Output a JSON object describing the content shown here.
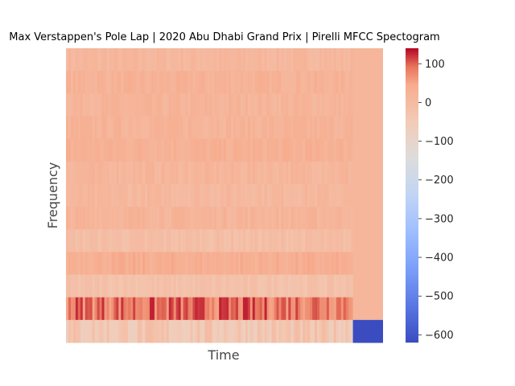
{
  "chart_data": {
    "type": "heatmap",
    "title": "Max Verstappen's Pole Lap | 2020 Abu Dhabi Grand Prix | Pirelli MFCC Spectogram",
    "xlabel": "Time",
    "ylabel": "Frequency",
    "x_ticks_shown": false,
    "y_ticks_shown": false,
    "grid": false,
    "colormap": "coolwarm",
    "colorbar": {
      "vmin": -620,
      "vmax": 140,
      "ticks": [
        100,
        0,
        -100,
        -200,
        -300,
        -400,
        -500,
        -600
      ],
      "tick_labels": [
        "100",
        "0",
        "−100",
        "−200",
        "−300",
        "−400",
        "−500",
        "−600"
      ]
    },
    "n_coefficients": 13,
    "data_time_fraction": 0.905,
    "coefficient_mean_values": [
      10,
      25,
      18,
      22,
      30,
      15,
      8,
      20,
      -10,
      35,
      -20,
      90,
      -40
    ],
    "coefficient_spread": [
      15,
      15,
      15,
      15,
      15,
      15,
      15,
      15,
      15,
      15,
      15,
      40,
      40
    ],
    "padding_values": [
      15,
      15,
      15,
      15,
      15,
      15,
      15,
      15,
      15,
      15,
      15,
      15,
      -620
    ]
  }
}
